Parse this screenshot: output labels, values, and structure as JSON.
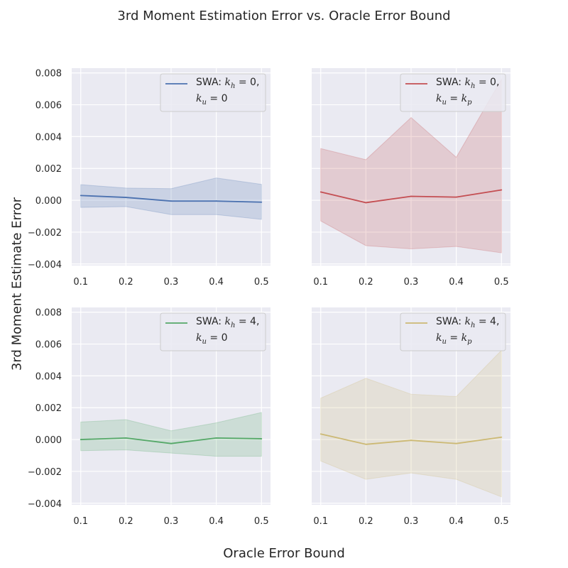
{
  "figure": {
    "title": "3rd Moment Estimation Error vs. Oracle Error Bound",
    "xlabel": "Oracle Error Bound",
    "ylabel": "3rd Moment Estimate Error"
  },
  "chart_data": [
    {
      "type": "line",
      "panel": "top-left",
      "legend_label": "SWA: k_h = 0, k_u = 0",
      "legend_line1": {
        "prefix": "SWA: ",
        "var": "k",
        "sub": "h",
        "rest": " = 0,"
      },
      "legend_line2": {
        "var": "k",
        "sub": "u",
        "rest": " = 0"
      },
      "legend_position": "upper-right",
      "color": "#4c72b0",
      "x": [
        0.1,
        0.2,
        0.3,
        0.4,
        0.5
      ],
      "y": [
        0.0003,
        0.00018,
        -5e-05,
        -5e-05,
        -0.00012
      ],
      "band_upper": [
        0.00098,
        0.00077,
        0.00073,
        0.0014,
        0.001
      ],
      "band_lower": [
        -0.00045,
        -0.0004,
        -0.0009,
        -0.0009,
        -0.0012
      ],
      "xticks": [
        "0.1",
        "0.2",
        "0.3",
        "0.4",
        "0.5"
      ],
      "yticks": [
        "0.008",
        "0.006",
        "0.004",
        "0.002",
        "0.000",
        "−0.002",
        "−0.004"
      ],
      "ylim": [
        -0.0041,
        0.0083
      ],
      "xlim": [
        0.08,
        0.52
      ],
      "grid": true
    },
    {
      "type": "line",
      "panel": "top-right",
      "legend_label": "SWA: k_h = 0, k_u = k_p",
      "legend_line1": {
        "prefix": "SWA: ",
        "var": "k",
        "sub": "h",
        "rest": " = 0,"
      },
      "legend_line2": {
        "var": "k",
        "sub": "u",
        "rest": " = ",
        "var2": "k",
        "sub2": "p"
      },
      "legend_position": "upper-right",
      "color": "#c44e52",
      "x": [
        0.1,
        0.2,
        0.3,
        0.4,
        0.5
      ],
      "y": [
        0.00052,
        -0.00015,
        0.00025,
        0.0002,
        0.00065
      ],
      "band_upper": [
        0.00325,
        0.00255,
        0.0052,
        0.0027,
        0.0076
      ],
      "band_lower": [
        -0.0013,
        -0.00285,
        -0.00305,
        -0.0029,
        -0.0033
      ],
      "xticks": [
        "0.1",
        "0.2",
        "0.3",
        "0.4",
        "0.5"
      ],
      "yticks": [],
      "ylim": [
        -0.0041,
        0.0083
      ],
      "xlim": [
        0.08,
        0.52
      ],
      "grid": true
    },
    {
      "type": "line",
      "panel": "bottom-left",
      "legend_label": "SWA: k_h = 4, k_u = 0",
      "legend_line1": {
        "prefix": "SWA: ",
        "var": "k",
        "sub": "h",
        "rest": " = 4,"
      },
      "legend_line2": {
        "var": "k",
        "sub": "u",
        "rest": " = 0"
      },
      "legend_position": "upper-right",
      "color": "#55a868",
      "x": [
        0.1,
        0.2,
        0.3,
        0.4,
        0.5
      ],
      "y": [
        0.0,
        0.0001,
        -0.00025,
        0.0001,
        5e-05
      ],
      "band_upper": [
        0.0011,
        0.00125,
        0.00055,
        0.00105,
        0.0017
      ],
      "band_lower": [
        -0.0007,
        -0.00065,
        -0.00085,
        -0.00105,
        -0.00105
      ],
      "xticks": [
        "0.1",
        "0.2",
        "0.3",
        "0.4",
        "0.5"
      ],
      "yticks": [
        "0.008",
        "0.006",
        "0.004",
        "0.002",
        "0.000",
        "−0.002",
        "−0.004"
      ],
      "ylim": [
        -0.0041,
        0.0083
      ],
      "xlim": [
        0.08,
        0.52
      ],
      "grid": true
    },
    {
      "type": "line",
      "panel": "bottom-right",
      "legend_label": "SWA: k_h = 4, k_u = k_p",
      "legend_line1": {
        "prefix": "SWA: ",
        "var": "k",
        "sub": "h",
        "rest": " = 4,"
      },
      "legend_line2": {
        "var": "k",
        "sub": "u",
        "rest": " = ",
        "var2": "k",
        "sub2": "p"
      },
      "legend_position": "upper-right",
      "color": "#ccb974",
      "x": [
        0.1,
        0.2,
        0.3,
        0.4,
        0.5
      ],
      "y": [
        0.00035,
        -0.0003,
        -5e-05,
        -0.00025,
        0.00015
      ],
      "band_upper": [
        0.0026,
        0.00385,
        0.00285,
        0.0027,
        0.0056
      ],
      "band_lower": [
        -0.00135,
        -0.0025,
        -0.0021,
        -0.0025,
        -0.0036
      ],
      "xticks": [
        "0.1",
        "0.2",
        "0.3",
        "0.4",
        "0.5"
      ],
      "yticks": [],
      "ylim": [
        -0.0041,
        0.0083
      ],
      "xlim": [
        0.08,
        0.52
      ],
      "grid": true
    }
  ],
  "style": {
    "axes_facecolor": "#eaeaf2",
    "grid_color": "#ffffff"
  }
}
